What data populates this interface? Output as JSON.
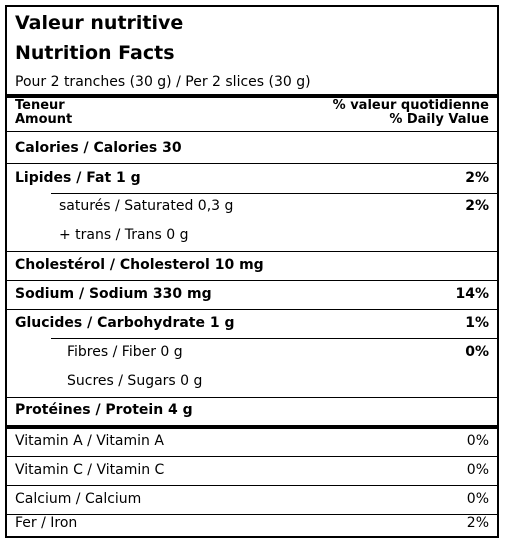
{
  "title_fr": "Valeur nutritive",
  "title_en": "Nutrition Facts",
  "serving": "Pour 2 tranches (30 g) / Per 2 slices (30 g)",
  "header": {
    "left_fr": "Teneur",
    "left_en": "Amount",
    "right_fr": "% valeur quotidienne",
    "right_en": "% Daily Value"
  },
  "rows": [
    {
      "name": "Calories / Calories 30",
      "pct": ""
    },
    {
      "name": "Lipides / Fat 1 g",
      "pct": "2%"
    },
    {
      "name": "saturés / Saturated 0,3 g",
      "pct": "2%"
    },
    {
      "name": "+ trans / Trans 0 g",
      "pct": ""
    },
    {
      "name": "Cholestérol / Cholesterol 10 mg",
      "pct": ""
    },
    {
      "name": "Sodium / Sodium 330 mg",
      "pct": "14%"
    },
    {
      "name": "Glucides / Carbohydrate 1 g",
      "pct": "1%"
    },
    {
      "name": "Fibres / Fiber 0 g",
      "pct": "0%"
    },
    {
      "name": "Sucres / Sugars 0 g",
      "pct": ""
    },
    {
      "name": "Protéines / Protein 4 g",
      "pct": ""
    },
    {
      "name": "Vitamin A / Vitamin A",
      "pct": "0%"
    },
    {
      "name": "Vitamin C / Vitamin C",
      "pct": "0%"
    },
    {
      "name": "Calcium / Calcium",
      "pct": "0%"
    },
    {
      "name": "Fer / Iron",
      "pct": "2%"
    }
  ]
}
